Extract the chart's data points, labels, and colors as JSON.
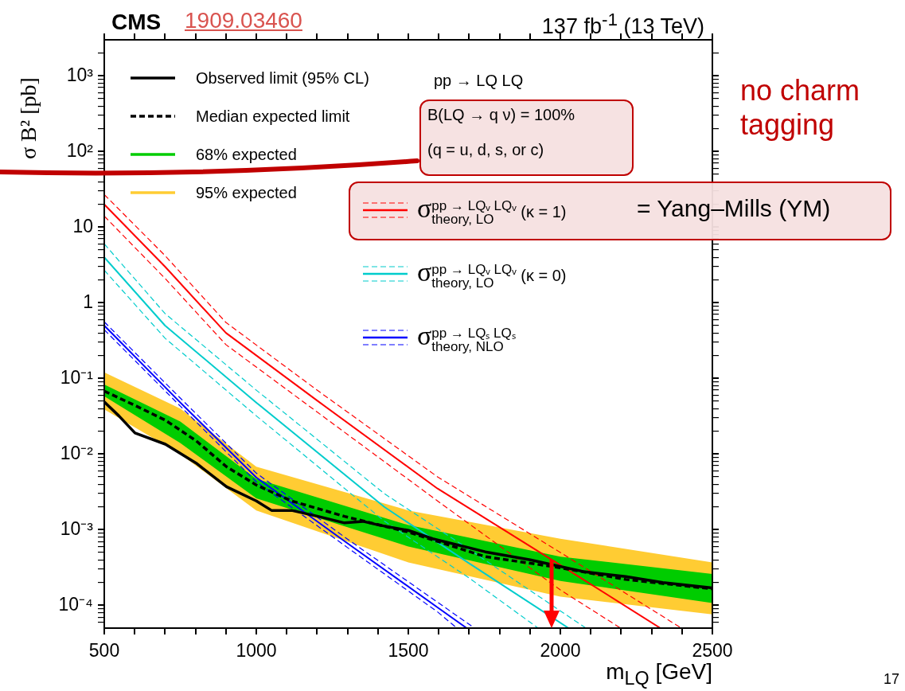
{
  "chart_data": {
    "type": "line",
    "title": "CMS",
    "subtitle": "1909.03460",
    "xlabel": "m$_{LQ}$ [GeV]",
    "ylabel": "σ B² [pb]",
    "log": true,
    "legend": "top left",
    "marker": "none",
    "xlim": [
      500,
      2500
    ],
    "xticks": [
      500,
      {
        "value": 600,
        "label": null
      },
      {
        "value": 700,
        "label": null
      },
      {
        "value": 800,
        "label": null
      },
      {
        "value": 900,
        "label": null
      },
      1000,
      {
        "value": 1100,
        "label": null
      },
      {
        "value": 1200,
        "label": null
      },
      {
        "value": 1300,
        "label": null
      },
      {
        "value": 1400,
        "label": null
      },
      1500,
      {
        "value": 1600,
        "label": null
      },
      {
        "value": 1700,
        "label": null
      },
      {
        "value": 1800,
        "label": null
      },
      {
        "value": 1900,
        "label": null
      },
      2000,
      {
        "value": 2100,
        "label": null
      },
      {
        "value": 2200,
        "label": null
      },
      {
        "value": 2300,
        "label": null
      },
      {
        "value": 2400,
        "label": null
      },
      2500
    ],
    "ylim": [
      5e-05,
      3000
    ],
    "yticks": [
      {
        "value": 6e-05,
        "label": null
      },
      {
        "value": 7e-05,
        "label": null
      },
      {
        "value": 8e-05,
        "label": null
      },
      {
        "value": 9e-05,
        "label": null
      },
      {
        "value": 0.0001,
        "label": "10⁻⁴"
      },
      {
        "value": 0.0002,
        "label": null
      },
      {
        "value": 0.0003,
        "label": null
      },
      {
        "value": 0.0004,
        "label": null
      },
      {
        "value": 0.0005,
        "label": null
      },
      {
        "value": 0.0006,
        "label": null
      },
      {
        "value": 0.0007,
        "label": null
      },
      {
        "value": 0.0008,
        "label": null
      },
      {
        "value": 0.0009,
        "label": null
      },
      {
        "value": 0.001,
        "label": "10⁻³"
      },
      {
        "value": 0.002,
        "label": null
      },
      {
        "value": 0.003,
        "label": null
      },
      {
        "value": 0.004,
        "label": null
      },
      {
        "value": 0.005,
        "label": null
      },
      {
        "value": 0.006,
        "label": null
      },
      {
        "value": 0.007,
        "label": null
      },
      {
        "value": 0.008,
        "label": null
      },
      {
        "value": 0.009,
        "label": null
      },
      {
        "value": 0.01,
        "label": "10⁻²"
      },
      {
        "value": 0.02,
        "label": null
      },
      {
        "value": 0.03,
        "label": null
      },
      {
        "value": 0.04,
        "label": null
      },
      {
        "value": 0.05,
        "label": null
      },
      {
        "value": 0.06,
        "label": null
      },
      {
        "value": 0.07,
        "label": null
      },
      {
        "value": 0.08,
        "label": null
      },
      {
        "value": 0.09,
        "label": null
      },
      {
        "value": 0.1,
        "label": "10⁻¹"
      },
      {
        "value": 0.2,
        "label": null
      },
      {
        "value": 0.3,
        "label": null
      },
      {
        "value": 0.4,
        "label": null
      },
      {
        "value": 0.5,
        "label": null
      },
      {
        "value": 0.6,
        "label": null
      },
      {
        "value": 0.7,
        "label": null
      },
      {
        "value": 0.8,
        "label": null
      },
      {
        "value": 0.9,
        "label": null
      },
      1,
      {
        "value": 2,
        "label": null
      },
      {
        "value": 3,
        "label": null
      },
      {
        "value": 4,
        "label": null
      },
      {
        "value": 5,
        "label": null
      },
      {
        "value": 6,
        "label": null
      },
      {
        "value": 7,
        "label": null
      },
      {
        "value": 8,
        "label": null
      },
      {
        "value": 9,
        "label": null
      },
      10,
      {
        "value": 20,
        "label": null
      },
      {
        "value": 30,
        "label": null
      },
      {
        "value": 40,
        "label": null
      },
      {
        "value": 50,
        "label": null
      },
      {
        "value": 60,
        "label": null
      },
      {
        "value": 70,
        "label": null
      },
      {
        "value": 80,
        "label": null
      },
      {
        "value": 90,
        "label": null
      },
      {
        "value": 100,
        "label": "10²"
      },
      {
        "value": 200,
        "label": null
      },
      {
        "value": 300,
        "label": null
      },
      {
        "value": 400,
        "label": null
      },
      {
        "value": 500,
        "label": null
      },
      {
        "value": 600,
        "label": null
      },
      {
        "value": 700,
        "label": null
      },
      {
        "value": 800,
        "label": null
      },
      {
        "value": 900,
        "label": null
      },
      {
        "value": 1000,
        "label": "10³"
      },
      {
        "value": 2000,
        "label": null
      }
    ],
    "series": [
      {
        "name": "Observed limit (95% CL)",
        "color": "#000000",
        "line_style": "solid",
        "x": [
          500,
          548,
          601,
          701,
          802,
          902,
          1000,
          1050,
          1116,
          1203,
          1290,
          1351,
          1404,
          1500,
          1580,
          1753,
          1901,
          2075,
          2215,
          2337,
          2500
        ],
        "values": [
          0.049,
          0.032,
          0.019,
          0.0135,
          0.0076,
          0.0037,
          0.0024,
          0.0018,
          0.0018,
          0.0015,
          0.00123,
          0.00129,
          0.00115,
          0.00098,
          0.00076,
          0.00051,
          0.0004,
          0.00028,
          0.00024,
          0.0002,
          0.00017
        ]
      },
      {
        "name": "Median expected limit",
        "color": "#000000",
        "line_style": "dashed",
        "x": [
          500,
          601,
          701,
          802,
          902,
          1000,
          1116,
          1290,
          1500,
          1753,
          1988,
          2215,
          2500
        ],
        "values": [
          0.068,
          0.044,
          0.028,
          0.015,
          0.0068,
          0.0039,
          0.0024,
          0.0015,
          0.00093,
          0.00044,
          0.00032,
          0.00022,
          0.000165
        ]
      },
      {
        "name": "68% expected",
        "color": "#00cc00",
        "x": [
          500,
          750,
          1000,
          1500,
          2000,
          2500
        ],
        "values": [
          null,
          null,
          null,
          null,
          null,
          null
        ],
        "lower": [
          0.058,
          0.014,
          0.0026,
          0.0006,
          0.00021,
          0.000107
        ],
        "upper": [
          0.083,
          0.027,
          0.0047,
          0.00115,
          0.00044,
          0.00026
        ]
      },
      {
        "name": "95% expected",
        "color": "#ffcc33",
        "x": [
          500,
          750,
          1000,
          1500,
          2000,
          2500
        ],
        "values": [
          null,
          null,
          null,
          null,
          null,
          null
        ],
        "lower": [
          0.039,
          0.01,
          0.0018,
          0.00037,
          0.00013,
          7.6e-05
        ],
        "upper": [
          0.12,
          0.04,
          0.0068,
          0.0018,
          0.00076,
          0.00037
        ]
      },
      {
        "name": "σ$^{pp → LQᵥ LQᵥ}$$_{theory, LO}$ (κ = 1)",
        "color": "#ff0000",
        "line_style": "solid",
        "x": [
          500,
          700,
          900,
          1200,
          1596,
          2000,
          2329
        ],
        "values": [
          20,
          3,
          0.4,
          0.051,
          0.0035,
          0.00034,
          5e-05
        ]
      },
      {
        "color": "#ff0000",
        "line_style": "dashed",
        "x": [
          500,
          700,
          900,
          1200,
          1596,
          2000,
          2398
        ],
        "values": [
          27,
          4.2,
          0.55,
          0.07,
          0.005,
          0.0005,
          5e-05
        ]
      },
      {
        "color": "#ff0000",
        "line_style": "dashed",
        "x": [
          500,
          700,
          900,
          1200,
          1596,
          2000,
          2198
        ],
        "values": [
          14,
          2.1,
          0.28,
          0.036,
          0.0024,
          0.00016,
          5e-05
        ]
      },
      {
        "name": "σ$^{pp → LQᵥ LQᵥ}$$_{theory, LO}$ (κ = 0)",
        "color": "#00cccc",
        "line_style": "solid",
        "x": [
          500,
          700,
          1000,
          1421,
          1700,
          2027
        ],
        "values": [
          4,
          0.5,
          0.048,
          0.002,
          0.00036,
          5e-05
        ]
      },
      {
        "color": "#00cccc",
        "line_style": "dashed",
        "x": [
          500,
          700,
          1000,
          1421,
          1700,
          2084
        ],
        "values": [
          6,
          0.72,
          0.07,
          0.003,
          0.00055,
          5e-05
        ]
      },
      {
        "color": "#00cccc",
        "line_style": "dashed",
        "x": [
          500,
          700,
          1000,
          1421,
          1700,
          1927
        ],
        "values": [
          2.7,
          0.34,
          0.032,
          0.0013,
          0.00023,
          5e-05
        ]
      },
      {
        "name": "σ$^{pp → LQₛ LQₛ}$$_{theory, NLO}$",
        "color": "#0000ff",
        "line_style": "solid",
        "x": [
          500,
          750,
          1000,
          1300,
          1596,
          1692
        ],
        "values": [
          0.5,
          0.048,
          0.0049,
          0.00066,
          9.4e-05,
          5e-05
        ]
      },
      {
        "color": "#0000ff",
        "line_style": "dashed",
        "x": [
          500,
          750,
          1000,
          1300,
          1596,
          1718
        ],
        "values": [
          0.56,
          0.055,
          0.0056,
          0.00075,
          0.00011,
          5e-05
        ]
      },
      {
        "color": "#0000ff",
        "line_style": "dashed",
        "x": [
          500,
          750,
          1000,
          1300,
          1596,
          1660
        ],
        "values": [
          0.44,
          0.043,
          0.0043,
          0.00058,
          8.2e-05,
          5e-05
        ]
      }
    ],
    "annotations": [
      "137 fb$^{-1}$ (13 TeV)",
      "pp → LQ LQ",
      "B(LQ → q ν) = 100%",
      "(q = u, d, s, or c)",
      "= Yang–Mills (YM)",
      "no charm tagging",
      "17"
    ]
  }
}
